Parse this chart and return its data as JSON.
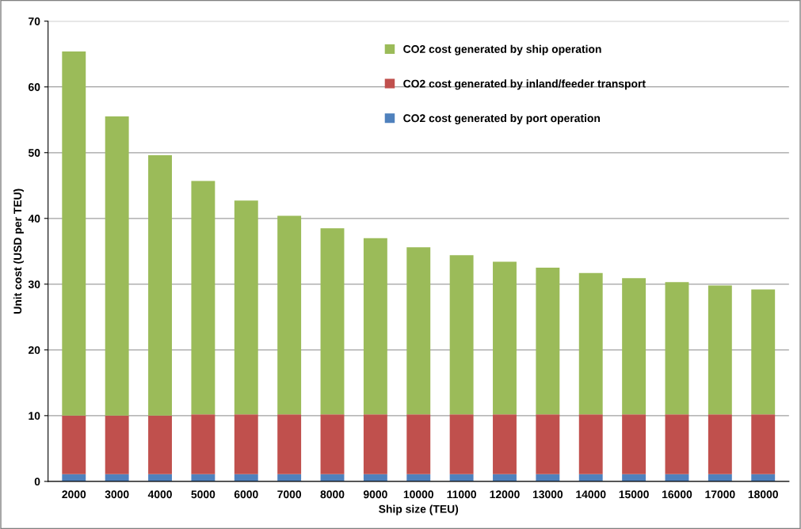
{
  "chart_data": {
    "type": "bar",
    "stacked": true,
    "xlabel": "Ship size (TEU)",
    "ylabel": "Unit cost (USD per TEU)",
    "categories": [
      "2000",
      "3000",
      "4000",
      "5000",
      "6000",
      "7000",
      "8000",
      "9000",
      "10000",
      "11000",
      "12000",
      "13000",
      "14000",
      "15000",
      "16000",
      "17000",
      "18000"
    ],
    "series": [
      {
        "name": "CO2 cost generated by port operation",
        "color": "#4f81bd",
        "values": [
          1.1,
          1.1,
          1.1,
          1.1,
          1.1,
          1.1,
          1.1,
          1.1,
          1.1,
          1.1,
          1.1,
          1.1,
          1.1,
          1.1,
          1.1,
          1.1,
          1.1
        ]
      },
      {
        "name": "CO2 cost generated by inland/feeder transport",
        "color": "#c0504d",
        "values": [
          8.9,
          8.9,
          8.9,
          9.1,
          9.1,
          9.1,
          9.1,
          9.1,
          9.1,
          9.1,
          9.1,
          9.1,
          9.1,
          9.1,
          9.1,
          9.1,
          9.1
        ]
      },
      {
        "name": "CO2 cost generated by ship operation",
        "color": "#9bbb59",
        "values": [
          55.4,
          45.5,
          39.6,
          35.5,
          32.5,
          30.2,
          28.3,
          26.8,
          25.4,
          24.2,
          23.2,
          22.3,
          21.5,
          20.7,
          20.1,
          19.6,
          19.0
        ]
      }
    ],
    "ylim": [
      0,
      70
    ],
    "yticks": [
      0,
      10,
      20,
      30,
      40,
      50,
      60,
      70
    ],
    "grid": "y",
    "legend": "top right"
  }
}
